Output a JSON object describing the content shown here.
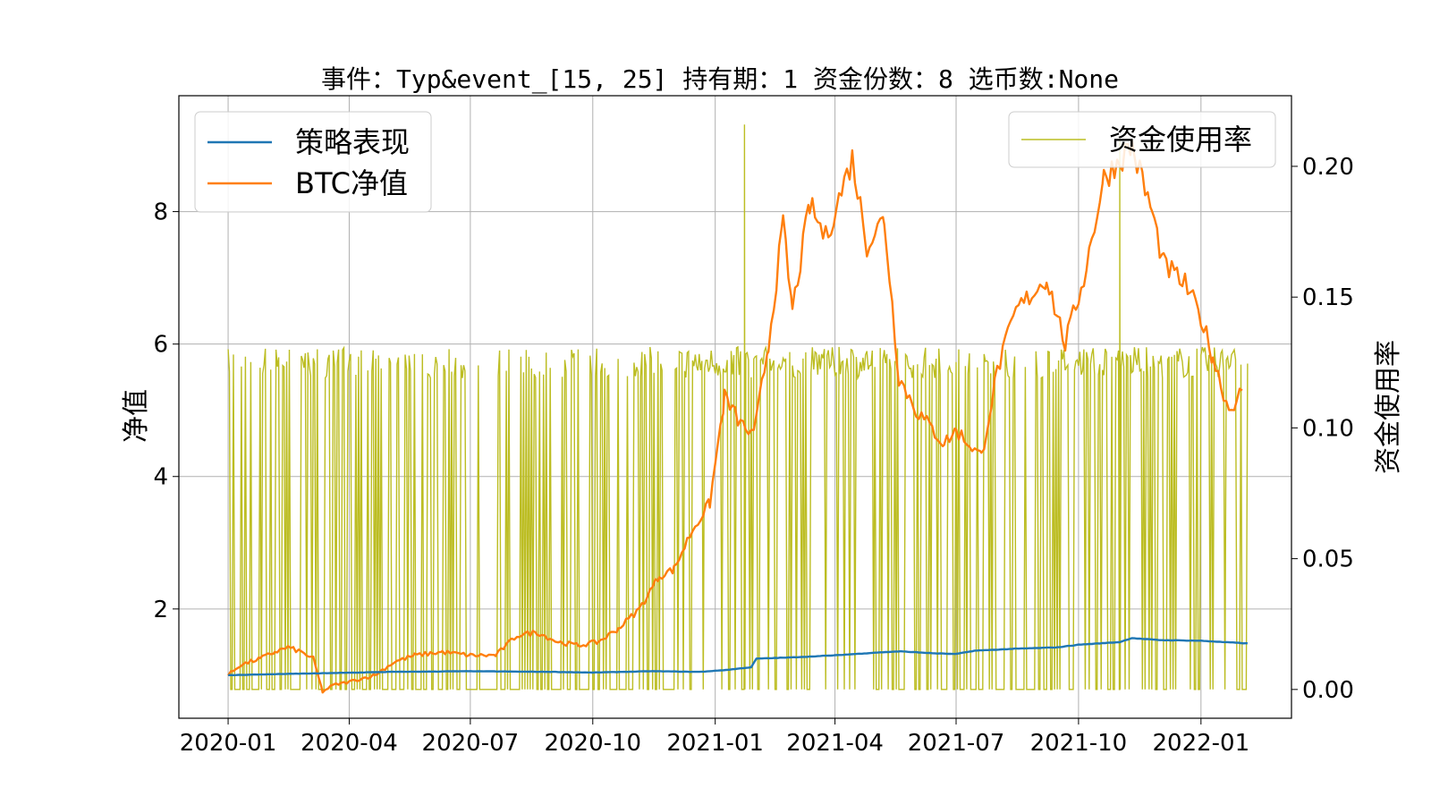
{
  "chart_data": {
    "type": "line",
    "title": "事件：Typ&event_[15, 25] 持有期：1 资金份数：8 选币数:None",
    "xlabel": "",
    "ylabel": "净值",
    "y2label": "资金使用率",
    "xlim": [
      "2019-11-25",
      "2022-03-10"
    ],
    "ylim": [
      0.35,
      9.75
    ],
    "y2lim": [
      -0.011,
      0.227
    ],
    "x_ticks": [
      "2020-01",
      "2020-04",
      "2020-07",
      "2020-10",
      "2021-01",
      "2021-04",
      "2021-07",
      "2021-10",
      "2022-01"
    ],
    "y_ticks": [
      2,
      4,
      6,
      8
    ],
    "y2_ticks": [
      "0.00",
      "0.05",
      "0.10",
      "0.15",
      "0.20"
    ],
    "grid": true,
    "legend_left_position": "upper left",
    "legend_right_position": "upper right",
    "series": [
      {
        "name": "策略表现",
        "axis": "left",
        "color": "#1f77b4",
        "points": [
          [
            "2020-01-01",
            1.0
          ],
          [
            "2020-02-15",
            1.02
          ],
          [
            "2020-03-15",
            1.03
          ],
          [
            "2020-05-01",
            1.05
          ],
          [
            "2020-07-01",
            1.06
          ],
          [
            "2020-09-01",
            1.05
          ],
          [
            "2020-10-01",
            1.04
          ],
          [
            "2020-11-15",
            1.06
          ],
          [
            "2020-12-20",
            1.05
          ],
          [
            "2021-01-10",
            1.08
          ],
          [
            "2021-01-28",
            1.12
          ],
          [
            "2021-02-01",
            1.25
          ],
          [
            "2021-03-01",
            1.27
          ],
          [
            "2021-04-01",
            1.3
          ],
          [
            "2021-05-01",
            1.34
          ],
          [
            "2021-05-20",
            1.36
          ],
          [
            "2021-06-15",
            1.33
          ],
          [
            "2021-07-01",
            1.32
          ],
          [
            "2021-07-15",
            1.37
          ],
          [
            "2021-08-15",
            1.4
          ],
          [
            "2021-09-15",
            1.42
          ],
          [
            "2021-10-01",
            1.46
          ],
          [
            "2021-11-01",
            1.5
          ],
          [
            "2021-11-10",
            1.56
          ],
          [
            "2021-12-01",
            1.53
          ],
          [
            "2022-01-01",
            1.52
          ],
          [
            "2022-02-05",
            1.48
          ]
        ]
      },
      {
        "name": "BTC净值",
        "axis": "left",
        "color": "#ff7f0e",
        "points": [
          [
            "2020-01-01",
            1.0
          ],
          [
            "2020-01-10",
            1.15
          ],
          [
            "2020-01-25",
            1.25
          ],
          [
            "2020-02-05",
            1.35
          ],
          [
            "2020-02-15",
            1.42
          ],
          [
            "2020-02-25",
            1.35
          ],
          [
            "2020-03-05",
            1.25
          ],
          [
            "2020-03-12",
            0.75
          ],
          [
            "2020-03-20",
            0.85
          ],
          [
            "2020-04-01",
            0.9
          ],
          [
            "2020-04-20",
            1.0
          ],
          [
            "2020-05-05",
            1.2
          ],
          [
            "2020-05-20",
            1.3
          ],
          [
            "2020-06-10",
            1.35
          ],
          [
            "2020-07-01",
            1.3
          ],
          [
            "2020-07-20",
            1.3
          ],
          [
            "2020-08-05",
            1.6
          ],
          [
            "2020-08-20",
            1.65
          ],
          [
            "2020-09-05",
            1.5
          ],
          [
            "2020-09-20",
            1.45
          ],
          [
            "2020-10-05",
            1.5
          ],
          [
            "2020-10-20",
            1.7
          ],
          [
            "2020-11-05",
            2.0
          ],
          [
            "2020-11-20",
            2.5
          ],
          [
            "2020-12-01",
            2.6
          ],
          [
            "2020-12-15",
            3.2
          ],
          [
            "2020-12-28",
            3.6
          ],
          [
            "2021-01-08",
            5.2
          ],
          [
            "2021-01-20",
            4.8
          ],
          [
            "2021-01-30",
            4.6
          ],
          [
            "2021-02-10",
            6.0
          ],
          [
            "2021-02-21",
            7.8
          ],
          [
            "2021-02-28",
            6.5
          ],
          [
            "2021-03-13",
            8.1
          ],
          [
            "2021-03-25",
            7.6
          ],
          [
            "2021-04-14",
            8.8
          ],
          [
            "2021-04-25",
            7.5
          ],
          [
            "2021-05-08",
            7.9
          ],
          [
            "2021-05-19",
            5.5
          ],
          [
            "2021-06-01",
            5.0
          ],
          [
            "2021-06-22",
            4.5
          ],
          [
            "2021-07-01",
            4.7
          ],
          [
            "2021-07-20",
            4.3
          ],
          [
            "2021-08-01",
            5.6
          ],
          [
            "2021-08-15",
            6.5
          ],
          [
            "2021-09-07",
            7.0
          ],
          [
            "2021-09-21",
            6.0
          ],
          [
            "2021-10-05",
            7.0
          ],
          [
            "2021-10-20",
            8.5
          ],
          [
            "2021-11-10",
            9.0
          ],
          [
            "2021-11-25",
            8.0
          ],
          [
            "2021-12-04",
            7.2
          ],
          [
            "2021-12-20",
            6.9
          ],
          [
            "2022-01-01",
            6.4
          ],
          [
            "2022-01-10",
            5.8
          ],
          [
            "2022-01-22",
            5.0
          ],
          [
            "2022-02-01",
            5.3
          ]
        ]
      },
      {
        "name": "资金使用率",
        "axis": "right",
        "color": "#bcbd22",
        "typical_high": 0.125,
        "spike_points": [
          [
            "2021-01-23",
            0.216
          ],
          [
            "2021-11-01",
            0.21
          ]
        ]
      }
    ]
  }
}
